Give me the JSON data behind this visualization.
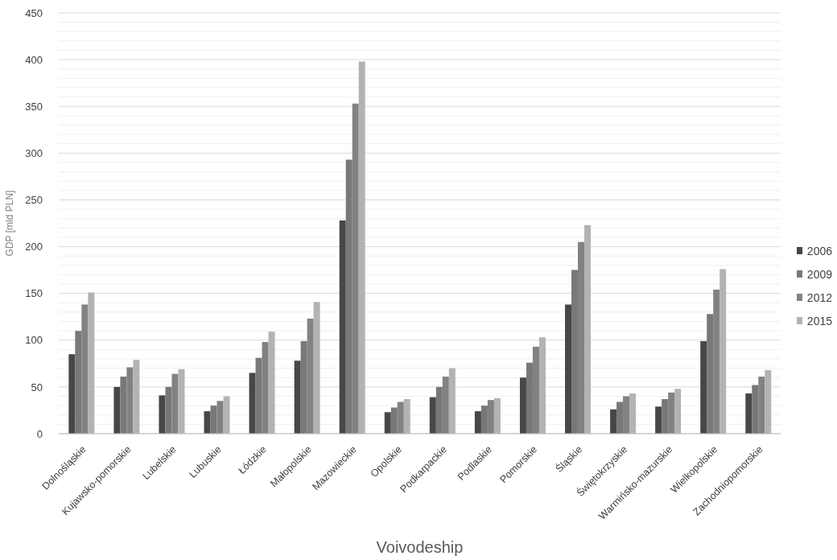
{
  "chart_data": {
    "type": "bar",
    "xlabel": "Voivodeship",
    "ylabel": "GDP [mld PLN]",
    "categories": [
      "Dolnośląskie",
      "Kujawsko-pomorskie",
      "Lubelskie",
      "Lubuskie",
      "Łódzkie",
      "Małopolskie",
      "Mazowieckie",
      "Opolskie",
      "Podkarpackie",
      "Podlaskie",
      "Pomorskie",
      "Śląskie",
      "Świętokrzyskie",
      "Warmińsko-mazurskie",
      "Wielkopolskie",
      "Zachodniopomorskie"
    ],
    "series": [
      {
        "name": "2006",
        "color": "#474747",
        "values": [
          85,
          50,
          41,
          24,
          65,
          78,
          228,
          23,
          39,
          24,
          60,
          138,
          26,
          29,
          99,
          43
        ]
      },
      {
        "name": "2009",
        "color": "#787878",
        "values": [
          110,
          61,
          50,
          30,
          81,
          99,
          293,
          28,
          50,
          30,
          76,
          175,
          34,
          37,
          128,
          52
        ]
      },
      {
        "name": "2012",
        "color": "#828282",
        "values": [
          138,
          71,
          64,
          35,
          98,
          123,
          353,
          34,
          61,
          36,
          93,
          205,
          40,
          44,
          154,
          61
        ]
      },
      {
        "name": "2015",
        "color": "#b3b3b3",
        "values": [
          151,
          79,
          69,
          40,
          109,
          141,
          398,
          37,
          70,
          38,
          103,
          223,
          43,
          48,
          176,
          68
        ]
      }
    ],
    "ylim": [
      0,
      450
    ],
    "yticks": [
      0,
      {
        "value": 10,
        "label": null
      },
      {
        "value": 20,
        "label": null
      },
      {
        "value": 30,
        "label": null
      },
      {
        "value": 40,
        "label": null
      },
      50,
      {
        "value": 60,
        "label": null
      },
      {
        "value": 70,
        "label": null
      },
      {
        "value": 80,
        "label": null
      },
      {
        "value": 90,
        "label": null
      },
      100,
      {
        "value": 110,
        "label": null
      },
      {
        "value": 120,
        "label": null
      },
      {
        "value": 130,
        "label": null
      },
      {
        "value": 140,
        "label": null
      },
      150,
      {
        "value": 160,
        "label": null
      },
      {
        "value": 170,
        "label": null
      },
      {
        "value": 180,
        "label": null
      },
      {
        "value": 190,
        "label": null
      },
      200,
      {
        "value": 210,
        "label": null
      },
      {
        "value": 220,
        "label": null
      },
      {
        "value": 230,
        "label": null
      },
      {
        "value": 240,
        "label": null
      },
      250,
      {
        "value": 260,
        "label": null
      },
      {
        "value": 270,
        "label": null
      },
      {
        "value": 280,
        "label": null
      },
      {
        "value": 290,
        "label": null
      },
      300,
      {
        "value": 310,
        "label": null
      },
      {
        "value": 320,
        "label": null
      },
      {
        "value": 330,
        "label": null
      },
      {
        "value": 340,
        "label": null
      },
      350,
      {
        "value": 360,
        "label": null
      },
      {
        "value": 370,
        "label": null
      },
      {
        "value": 380,
        "label": null
      },
      {
        "value": 390,
        "label": null
      },
      400,
      {
        "value": 410,
        "label": null
      },
      {
        "value": 420,
        "label": null
      },
      {
        "value": 430,
        "label": null
      },
      {
        "value": 440,
        "label": null
      },
      450
    ],
    "grid": "y",
    "legend": "right"
  }
}
